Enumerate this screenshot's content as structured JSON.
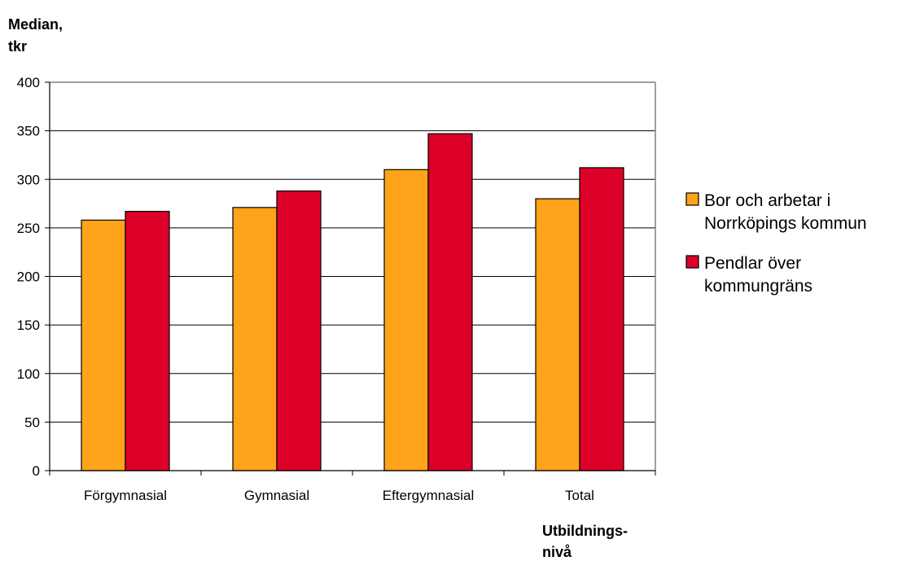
{
  "chart_data": {
    "type": "bar",
    "title": "",
    "ylabel_lines": [
      "Median,",
      "tkr"
    ],
    "xlabel_lines": [
      "Utbildnings-",
      "nivå"
    ],
    "categories": [
      "Förgymnasial",
      "Gymnasial",
      "Eftergymnasial",
      "Total"
    ],
    "series": [
      {
        "name_lines": [
          "Bor och arbetar i",
          "Norrköpings kommun"
        ],
        "color": "#ffa31a",
        "values": [
          258,
          271,
          310,
          280
        ]
      },
      {
        "name_lines": [
          "Pendlar över",
          "kommungräns"
        ],
        "color": "#dc0028",
        "values": [
          267,
          288,
          347,
          312
        ]
      }
    ],
    "ylim": [
      0,
      400
    ],
    "yticks": [
      0,
      50,
      100,
      150,
      200,
      250,
      300,
      350,
      400
    ],
    "grid": true,
    "legend_position": "right"
  }
}
